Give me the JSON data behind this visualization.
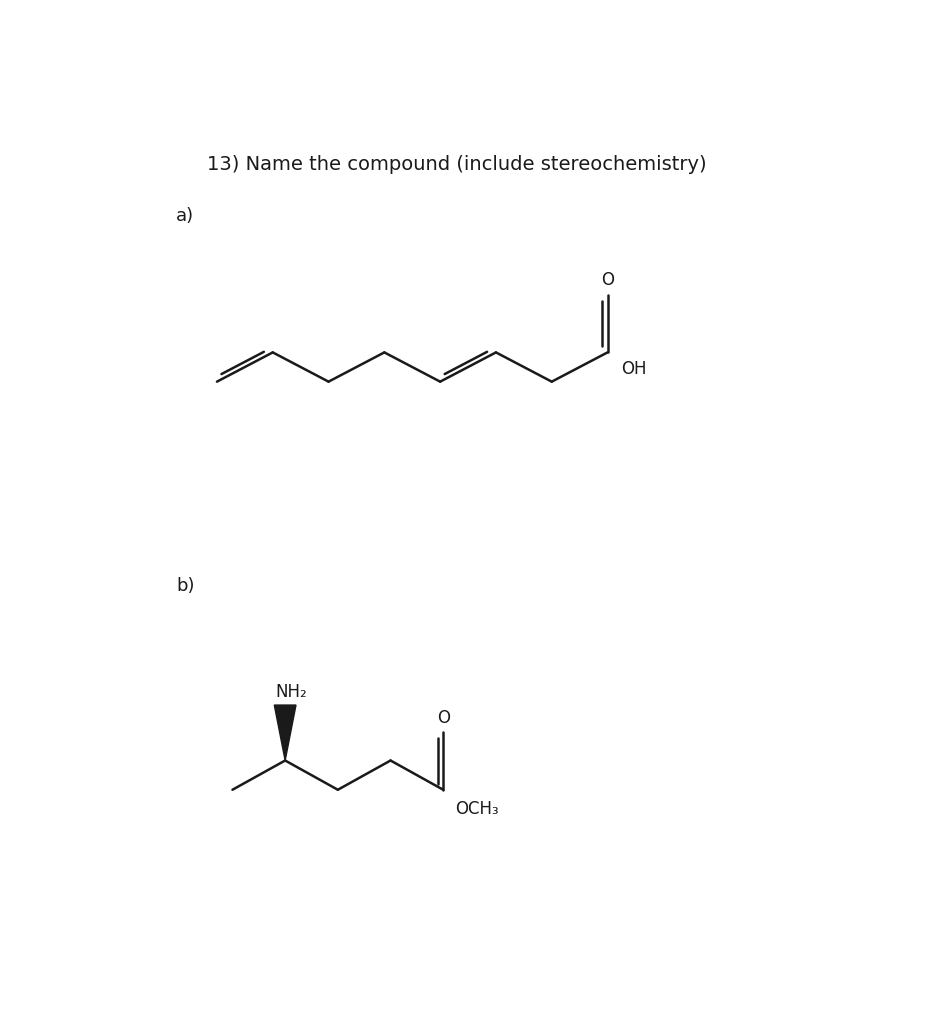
{
  "title": "13) Name the compound (include stereochemistry)",
  "bg_color": "#ffffff",
  "line_color": "#1a1a1a",
  "line_width": 1.8,
  "label_a": "a)",
  "label_b": "b)",
  "label_fontsize": 13,
  "title_fontsize": 14
}
